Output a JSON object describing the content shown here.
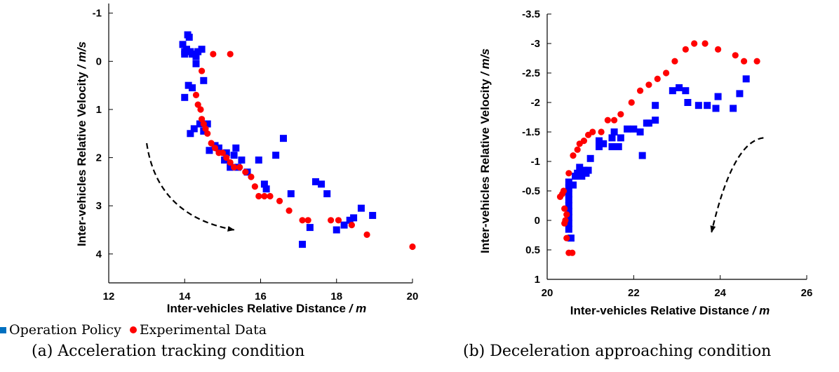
{
  "legend": {
    "operation_policy": "Operation Policy",
    "experimental_data": "Experimental Data",
    "colors": {
      "operation_policy": "#0000ff",
      "experimental_data": "#ff0000"
    }
  },
  "captions": {
    "a": "(a) Acceleration tracking condition",
    "b": "(b) Deceleration approaching condition"
  },
  "chart_data": [
    {
      "type": "scatter",
      "id": "a",
      "xlabel_main": "Inter-vehicles Relative Distance",
      "xlabel_unit": " / m",
      "ylabel_main": "Inter-vehicles Relative Velocity",
      "ylabel_unit": " / m/s",
      "xlim": [
        12,
        20
      ],
      "ylim": [
        -1.2,
        4.6
      ],
      "y_inverted": true,
      "xticks": [
        12,
        14,
        16,
        18,
        20
      ],
      "yticks": [
        -1,
        0,
        1,
        2,
        3,
        4
      ],
      "grid": false,
      "series": [
        {
          "name": "Operation Policy",
          "marker": "square",
          "color": "#0000ff",
          "points": [
            [
              13.95,
              -0.35
            ],
            [
              14.0,
              -0.2
            ],
            [
              14.0,
              -0.15
            ],
            [
              14.05,
              -0.25
            ],
            [
              14.08,
              -0.55
            ],
            [
              14.12,
              -0.5
            ],
            [
              14.0,
              0.75
            ],
            [
              14.1,
              0.5
            ],
            [
              14.2,
              0.55
            ],
            [
              14.15,
              -0.2
            ],
            [
              14.2,
              -0.15
            ],
            [
              14.25,
              -0.15
            ],
            [
              14.3,
              -0.1
            ],
            [
              14.35,
              -0.2
            ],
            [
              14.45,
              -0.25
            ],
            [
              14.3,
              0.05
            ],
            [
              14.5,
              0.4
            ],
            [
              14.15,
              1.5
            ],
            [
              14.25,
              1.4
            ],
            [
              14.5,
              1.45
            ],
            [
              14.4,
              1.3
            ],
            [
              14.6,
              1.3
            ],
            [
              14.65,
              1.85
            ],
            [
              14.8,
              1.75
            ],
            [
              14.9,
              1.8
            ],
            [
              15.05,
              2.05
            ],
            [
              15.1,
              1.9
            ],
            [
              15.2,
              2.2
            ],
            [
              15.3,
              1.95
            ],
            [
              15.35,
              1.8
            ],
            [
              15.4,
              2.2
            ],
            [
              15.5,
              2.05
            ],
            [
              15.65,
              2.3
            ],
            [
              15.95,
              2.05
            ],
            [
              16.1,
              2.55
            ],
            [
              16.15,
              2.65
            ],
            [
              16.4,
              1.95
            ],
            [
              16.6,
              1.6
            ],
            [
              16.8,
              2.75
            ],
            [
              17.1,
              3.8
            ],
            [
              17.3,
              3.45
            ],
            [
              17.45,
              2.5
            ],
            [
              17.6,
              2.55
            ],
            [
              17.75,
              2.75
            ],
            [
              18.0,
              3.5
            ],
            [
              18.2,
              3.4
            ],
            [
              18.35,
              3.3
            ],
            [
              18.45,
              3.25
            ],
            [
              18.65,
              3.05
            ],
            [
              18.95,
              3.2
            ]
          ]
        },
        {
          "name": "Experimental Data",
          "marker": "circle",
          "color": "#ff0000",
          "points": [
            [
              14.75,
              -0.15
            ],
            [
              15.2,
              -0.15
            ],
            [
              14.45,
              0.2
            ],
            [
              14.3,
              0.7
            ],
            [
              14.35,
              0.9
            ],
            [
              14.42,
              1.0
            ],
            [
              14.45,
              1.2
            ],
            [
              14.5,
              1.3
            ],
            [
              14.55,
              1.4
            ],
            [
              14.6,
              1.5
            ],
            [
              14.7,
              1.7
            ],
            [
              14.8,
              1.8
            ],
            [
              14.9,
              1.9
            ],
            [
              15.0,
              1.9
            ],
            [
              15.1,
              2.0
            ],
            [
              15.2,
              2.1
            ],
            [
              15.3,
              2.2
            ],
            [
              15.45,
              2.2
            ],
            [
              15.6,
              2.3
            ],
            [
              15.75,
              2.4
            ],
            [
              15.85,
              2.6
            ],
            [
              15.95,
              2.8
            ],
            [
              16.1,
              2.8
            ],
            [
              16.25,
              2.8
            ],
            [
              16.5,
              2.9
            ],
            [
              16.75,
              3.1
            ],
            [
              17.1,
              3.3
            ],
            [
              17.25,
              3.3
            ],
            [
              17.85,
              3.3
            ],
            [
              18.05,
              3.3
            ],
            [
              18.4,
              3.4
            ],
            [
              18.8,
              3.6
            ],
            [
              20.0,
              3.85
            ]
          ]
        }
      ],
      "annotations": [
        {
          "type": "dashed-arrow",
          "from": [
            13.0,
            1.7
          ],
          "to": [
            15.3,
            3.5
          ]
        }
      ]
    },
    {
      "type": "scatter",
      "id": "b",
      "xlabel_main": "Inter-vehicles Relative Distance",
      "xlabel_unit": " / m",
      "ylabel_main": "Inter-vehicles Relative Velocity",
      "ylabel_unit": " / m/s",
      "xlim": [
        20,
        26
      ],
      "ylim": [
        -3.5,
        1
      ],
      "y_inverted": true,
      "xticks": [
        20,
        22,
        24,
        26
      ],
      "yticks": [
        -3.5,
        -3,
        -2.5,
        -2,
        -1.5,
        -1,
        -0.5,
        0,
        0.5,
        1
      ],
      "grid": false,
      "series": [
        {
          "name": "Operation Policy",
          "marker": "square",
          "color": "#0000ff",
          "points": [
            [
              20.5,
              0.15
            ],
            [
              20.5,
              0.05
            ],
            [
              20.5,
              -0.05
            ],
            [
              20.5,
              -0.15
            ],
            [
              20.5,
              -0.25
            ],
            [
              20.5,
              -0.35
            ],
            [
              20.5,
              -0.45
            ],
            [
              20.5,
              -0.55
            ],
            [
              20.5,
              -0.65
            ],
            [
              20.55,
              0.3
            ],
            [
              20.6,
              -0.6
            ],
            [
              20.65,
              -0.75
            ],
            [
              20.7,
              -0.8
            ],
            [
              20.75,
              -0.9
            ],
            [
              20.8,
              -0.75
            ],
            [
              20.85,
              -0.85
            ],
            [
              20.9,
              -0.8
            ],
            [
              20.95,
              -0.85
            ],
            [
              21.0,
              -1.05
            ],
            [
              21.2,
              -1.35
            ],
            [
              21.3,
              -1.3
            ],
            [
              21.2,
              -1.25
            ],
            [
              21.5,
              -1.25
            ],
            [
              21.5,
              -1.4
            ],
            [
              21.55,
              -1.5
            ],
            [
              21.65,
              -1.25
            ],
            [
              21.7,
              -1.4
            ],
            [
              21.85,
              -1.55
            ],
            [
              22.0,
              -1.55
            ],
            [
              22.15,
              -1.5
            ],
            [
              22.2,
              -1.1
            ],
            [
              22.3,
              -1.65
            ],
            [
              22.35,
              -1.65
            ],
            [
              22.5,
              -1.7
            ],
            [
              22.5,
              -1.95
            ],
            [
              22.9,
              -2.2
            ],
            [
              23.05,
              -2.25
            ],
            [
              23.2,
              -2.2
            ],
            [
              23.25,
              -2.0
            ],
            [
              23.5,
              -1.95
            ],
            [
              23.7,
              -1.95
            ],
            [
              23.9,
              -1.9
            ],
            [
              23.95,
              -2.1
            ],
            [
              24.3,
              -1.9
            ],
            [
              24.45,
              -2.15
            ],
            [
              24.6,
              -2.4
            ]
          ]
        },
        {
          "name": "Experimental Data",
          "marker": "circle",
          "color": "#ff0000",
          "points": [
            [
              20.3,
              -0.4
            ],
            [
              20.35,
              -0.45
            ],
            [
              20.38,
              -0.5
            ],
            [
              20.4,
              -0.2
            ],
            [
              20.42,
              0.0
            ],
            [
              20.4,
              0.05
            ],
            [
              20.45,
              0.3
            ],
            [
              20.5,
              0.55
            ],
            [
              20.58,
              0.55
            ],
            [
              20.45,
              -0.1
            ],
            [
              20.5,
              -0.8
            ],
            [
              20.6,
              -1.1
            ],
            [
              20.7,
              -1.2
            ],
            [
              20.75,
              -1.3
            ],
            [
              20.85,
              -1.35
            ],
            [
              20.95,
              -1.45
            ],
            [
              21.05,
              -1.5
            ],
            [
              21.25,
              -1.5
            ],
            [
              21.4,
              -1.7
            ],
            [
              21.55,
              -1.7
            ],
            [
              21.7,
              -1.8
            ],
            [
              21.95,
              -2.0
            ],
            [
              22.15,
              -2.2
            ],
            [
              22.35,
              -2.3
            ],
            [
              22.55,
              -2.4
            ],
            [
              22.75,
              -2.5
            ],
            [
              22.95,
              -2.7
            ],
            [
              23.2,
              -2.9
            ],
            [
              23.4,
              -3.0
            ],
            [
              23.65,
              -3.0
            ],
            [
              23.95,
              -2.9
            ],
            [
              24.35,
              -2.8
            ],
            [
              24.55,
              -2.7
            ],
            [
              24.85,
              -2.7
            ]
          ]
        }
      ],
      "annotations": [
        {
          "type": "dashed-arrow",
          "from": [
            25.0,
            -1.4
          ],
          "to": [
            23.8,
            0.2
          ]
        }
      ]
    }
  ]
}
